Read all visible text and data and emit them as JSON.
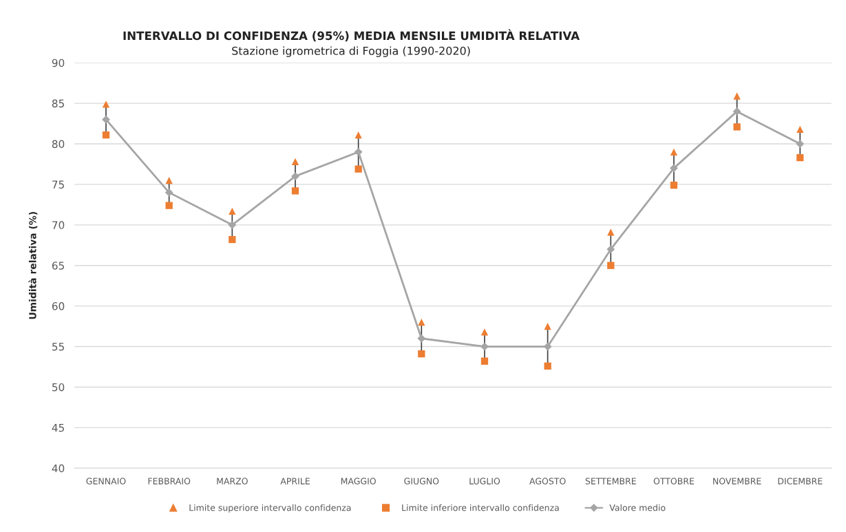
{
  "chart_data": {
    "type": "line",
    "title": "INTERVALLO DI CONFIDENZA (95%) MEDIA MENSILE UMIDITÀ RELATIVA",
    "subtitle": "Stazione igrometrica di Foggia (1990-2020)",
    "ylabel": "Umidità relativa (%)",
    "categories": [
      "GENNAIO",
      "FEBBRAIO",
      "MARZO",
      "APRILE",
      "MAGGIO",
      "GIUGNO",
      "LUGLIO",
      "AGOSTO",
      "SETTEMBRE",
      "OTTOBRE",
      "NOVEMBRE",
      "DICEMBRE"
    ],
    "series": [
      {
        "name": "Limite superiore intervallo confidenza",
        "type": "scatter",
        "marker": "triangle",
        "color": "#ed7d31",
        "values": [
          84.9,
          75.5,
          71.7,
          77.8,
          81.1,
          58.0,
          56.8,
          57.5,
          69.1,
          79.0,
          85.9,
          81.8
        ]
      },
      {
        "name": "Limite inferiore intervallo confidenza",
        "type": "scatter",
        "marker": "square",
        "color": "#ed7d31",
        "values": [
          81.1,
          72.4,
          68.2,
          74.2,
          76.9,
          54.1,
          53.2,
          52.6,
          65.0,
          74.9,
          82.1,
          78.3
        ]
      },
      {
        "name": "Valore medio",
        "marker": "diamond",
        "color": "#a5a5a5",
        "values": [
          83,
          74,
          70,
          76,
          79,
          56,
          55,
          55,
          67,
          77,
          84,
          80
        ]
      }
    ],
    "ylim": [
      40,
      90
    ],
    "yticks": [
      40,
      45,
      50,
      55,
      60,
      65,
      70,
      75,
      80,
      85,
      90
    ],
    "grid": "y",
    "legend": "bottom"
  }
}
